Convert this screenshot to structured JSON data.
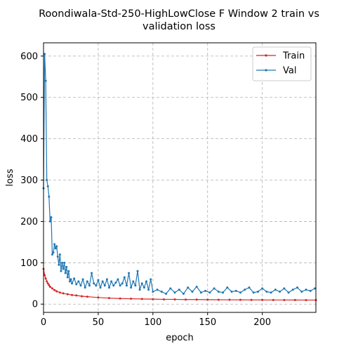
{
  "chart_data": {
    "type": "line",
    "title_lines": [
      "Roondiwala-Std-250-HighLowClose F Window 2 train vs",
      "validation loss"
    ],
    "xlabel": "epoch",
    "ylabel": "loss",
    "xlim": [
      0,
      249
    ],
    "ylim": [
      -20,
      632
    ],
    "xticks": [
      0,
      50,
      100,
      150,
      200
    ],
    "yticks": [
      0,
      100,
      200,
      300,
      400,
      500,
      600
    ],
    "grid": true,
    "grid_style": "dashed",
    "legend_position": "top-right",
    "series": [
      {
        "name": "Train",
        "color": "#d62728",
        "x": [
          0,
          1,
          2,
          3,
          4,
          5,
          6,
          8,
          10,
          12,
          15,
          18,
          22,
          26,
          30,
          35,
          40,
          50,
          60,
          70,
          80,
          90,
          100,
          110,
          120,
          130,
          140,
          150,
          160,
          170,
          180,
          190,
          200,
          210,
          220,
          230,
          240,
          249
        ],
        "y": [
          85,
          70,
          62,
          55,
          50,
          46,
          42,
          38,
          34,
          31,
          28,
          26,
          24,
          22,
          21,
          19,
          18,
          16,
          14.5,
          13.5,
          13,
          12.5,
          12,
          11.5,
          11.5,
          11,
          11,
          10.8,
          10.6,
          10.5,
          10.3,
          10.2,
          10.1,
          10,
          10,
          9.9,
          9.8,
          9.8
        ]
      },
      {
        "name": "Val",
        "color": "#1f77b4",
        "x": [
          0,
          1,
          2,
          3,
          4,
          5,
          6,
          7,
          8,
          9,
          10,
          11,
          12,
          13,
          14,
          15,
          16,
          17,
          18,
          19,
          20,
          21,
          22,
          23,
          24,
          25,
          26,
          28,
          30,
          32,
          34,
          36,
          38,
          40,
          42,
          44,
          46,
          48,
          50,
          52,
          54,
          56,
          58,
          60,
          62,
          64,
          66,
          68,
          70,
          72,
          74,
          76,
          78,
          80,
          82,
          84,
          86,
          88,
          90,
          92,
          94,
          96,
          98,
          100,
          104,
          108,
          112,
          116,
          120,
          124,
          128,
          132,
          136,
          140,
          144,
          148,
          152,
          156,
          160,
          164,
          168,
          172,
          176,
          180,
          184,
          188,
          192,
          196,
          200,
          204,
          208,
          212,
          216,
          220,
          224,
          228,
          232,
          236,
          240,
          244,
          248
        ],
        "y": [
          280,
          605,
          540,
          300,
          285,
          260,
          200,
          210,
          120,
          125,
          145,
          135,
          140,
          115,
          95,
          120,
          80,
          100,
          85,
          100,
          75,
          90,
          65,
          80,
          55,
          60,
          50,
          62,
          48,
          55,
          45,
          60,
          40,
          55,
          45,
          75,
          50,
          45,
          58,
          40,
          55,
          45,
          60,
          40,
          55,
          45,
          52,
          60,
          45,
          50,
          65,
          45,
          75,
          40,
          55,
          45,
          80,
          35,
          50,
          40,
          55,
          35,
          60,
          30,
          35,
          30,
          25,
          38,
          28,
          35,
          25,
          40,
          30,
          42,
          28,
          32,
          28,
          38,
          30,
          28,
          40,
          30,
          32,
          28,
          35,
          40,
          28,
          30,
          38,
          30,
          28,
          35,
          30,
          38,
          28,
          35,
          40,
          30,
          35,
          32,
          38
        ]
      }
    ]
  }
}
